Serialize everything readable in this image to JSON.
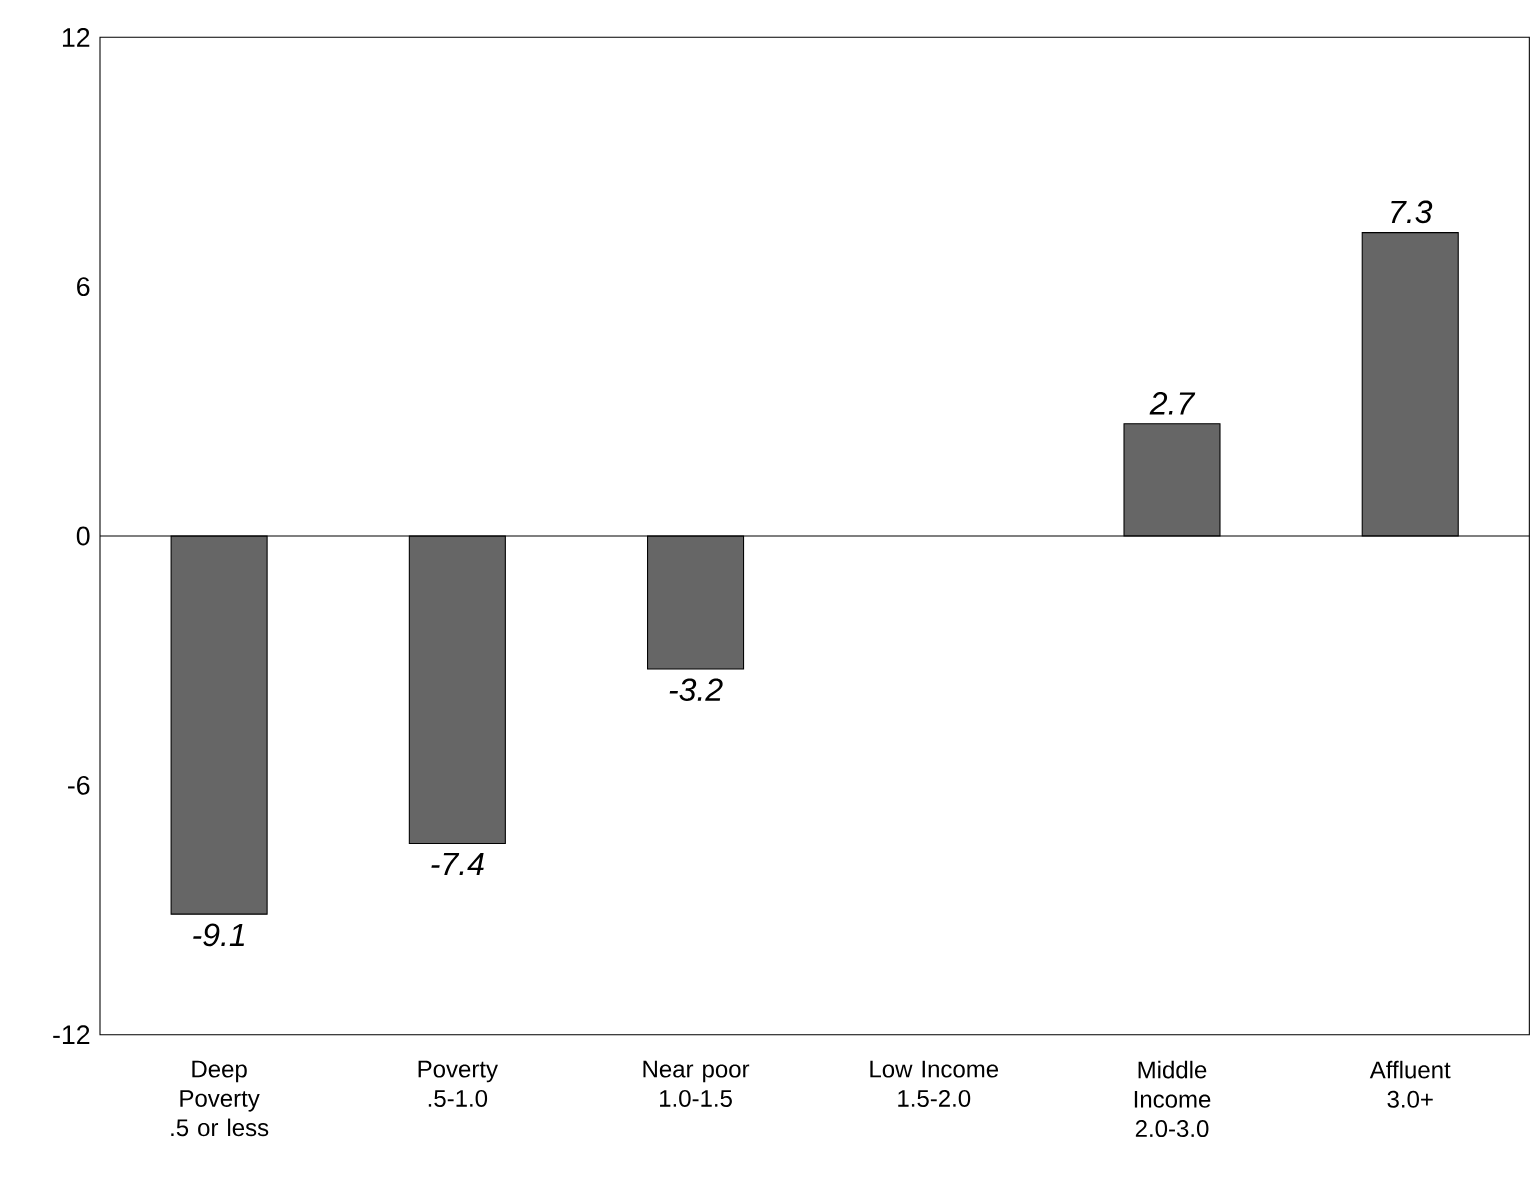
{
  "chart_data": {
    "type": "bar",
    "categories": [
      "Deep Poverty .5 or less",
      "Poverty .5-1.0",
      "Near poor 1.0-1.5",
      "Low Income 1.5-2.0",
      "Middle Income 2.0-3.0",
      "Affluent 3.0+"
    ],
    "values": [
      -9.1,
      -7.4,
      -3.2,
      null,
      2.7,
      7.3
    ],
    "value_labels": [
      "-9.1",
      "-7.4",
      "-3.2",
      null,
      "2.7",
      "7.3"
    ],
    "color": "#666666",
    "ylim": [
      -12,
      12
    ],
    "yticks": [
      -12,
      -6,
      0,
      6,
      12
    ]
  }
}
